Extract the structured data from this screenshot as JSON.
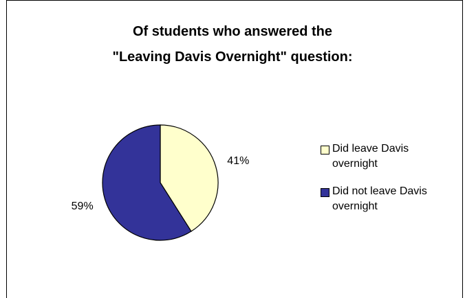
{
  "chart_data": {
    "type": "pie",
    "title_lines": [
      "Of students who answered the",
      "\"Leaving Davis Overnight\" question:"
    ],
    "slices": [
      {
        "label_lines": [
          "Did leave Davis",
          "overnight"
        ],
        "value": 41,
        "display": "41%",
        "color": "#ffffcc"
      },
      {
        "label_lines": [
          "Did not leave Davis",
          "overnight"
        ],
        "value": 59,
        "display": "59%",
        "color": "#333399"
      }
    ],
    "legend_position": "right"
  }
}
